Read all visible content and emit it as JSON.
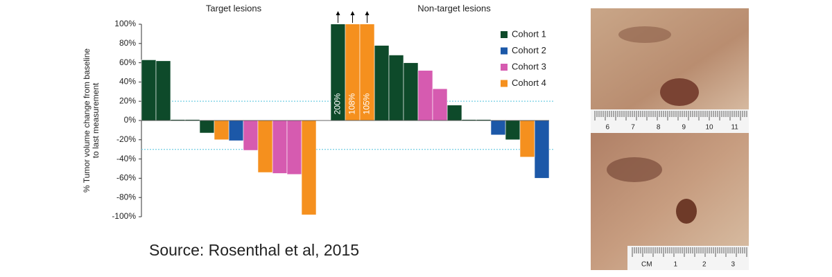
{
  "chart_data": {
    "type": "bar",
    "group_labels": [
      "Target lesions",
      "Non-target lesions"
    ],
    "ylabel": [
      "% Tumor volume change from baseline",
      "to last measurement"
    ],
    "ylim": [
      -100,
      100
    ],
    "yticks": [
      {
        "value": -100,
        "label": "-100%"
      },
      {
        "value": -80,
        "label": "-80%"
      },
      {
        "value": -60,
        "label": "-60%"
      },
      {
        "value": -40,
        "label": "-40%"
      },
      {
        "value": -20,
        "label": "-20%"
      },
      {
        "value": 0,
        "label": "0%"
      },
      {
        "value": 20,
        "label": "20%"
      },
      {
        "value": 40,
        "label": "40%"
      },
      {
        "value": 60,
        "label": "60%"
      },
      {
        "value": 80,
        "label": "80%"
      },
      {
        "value": 100,
        "label": "100%"
      }
    ],
    "reference_lines": [
      20,
      -30
    ],
    "reference_color": "#7fd3e6",
    "series": [
      {
        "name": "Cohort 1",
        "color": "#0e4a2a",
        "values": [
          63,
          62,
          1,
          1,
          -13,
          null,
          null,
          null,
          null,
          null,
          null,
          null,
          null,
          200,
          null,
          null,
          78,
          68,
          60,
          null,
          null,
          16,
          1,
          1,
          null,
          -20,
          null,
          null
        ],
        "value_labels": [
          null,
          null,
          null,
          null,
          null,
          null,
          null,
          null,
          null,
          null,
          null,
          null,
          null,
          "200%",
          null,
          null,
          null,
          null,
          null,
          null,
          null,
          null,
          null,
          null,
          null,
          null,
          null,
          null
        ]
      },
      {
        "name": "Cohort 2",
        "color": "#1c58a8",
        "values": [
          null,
          null,
          null,
          null,
          null,
          null,
          -21,
          null,
          null,
          null,
          null,
          null,
          null,
          null,
          null,
          null,
          null,
          null,
          null,
          null,
          null,
          null,
          null,
          null,
          -15,
          null,
          null,
          -60
        ]
      },
      {
        "name": "Cohort 3",
        "color": "#d65bb0",
        "values": [
          null,
          null,
          null,
          null,
          null,
          null,
          null,
          -31,
          null,
          -55,
          -56,
          null,
          null,
          null,
          null,
          null,
          null,
          null,
          null,
          52,
          33,
          null,
          null,
          null,
          null,
          null,
          null,
          null
        ]
      },
      {
        "name": "Cohort 4",
        "color": "#f5901e",
        "values": [
          null,
          null,
          null,
          null,
          null,
          -20,
          null,
          null,
          -54,
          null,
          null,
          -98,
          null,
          null,
          108,
          105,
          null,
          null,
          null,
          null,
          null,
          null,
          null,
          null,
          null,
          null,
          -38,
          null
        ],
        "value_labels": [
          null,
          null,
          null,
          null,
          null,
          null,
          null,
          null,
          null,
          null,
          null,
          null,
          null,
          null,
          "108%",
          "105%",
          null,
          null,
          null,
          null,
          null,
          null,
          null,
          null,
          null,
          null,
          null,
          null
        ]
      }
    ],
    "source": "Source: Rosenthal et al, 2015"
  },
  "photos": {
    "top_ruler": [
      "6",
      "7",
      "8",
      "9",
      "10",
      "11"
    ],
    "bottom_ruler": [
      "CM",
      "1",
      "2",
      "3"
    ]
  }
}
